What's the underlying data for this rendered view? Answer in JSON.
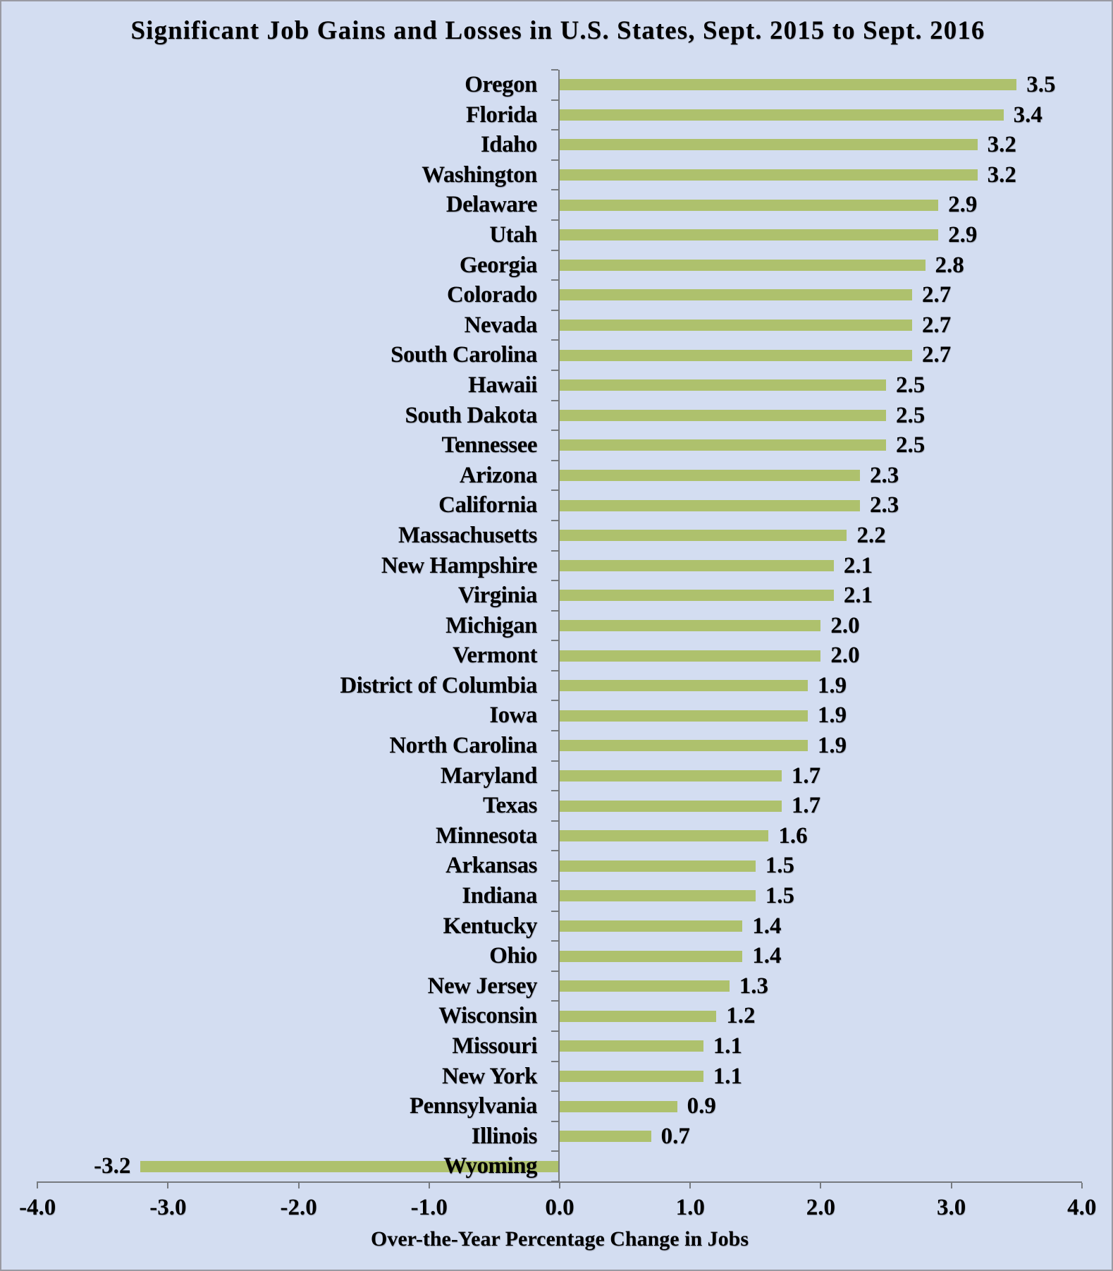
{
  "chart_data": {
    "type": "bar",
    "orientation": "horizontal",
    "title": "Significant Job Gains and Losses in U.S. States, Sept. 2015 to Sept. 2016",
    "xlabel": "Over-the-Year Percentage Change in Jobs",
    "xlim": [
      -4.0,
      4.0
    ],
    "xtick_labels": [
      "-4.0",
      "-3.0",
      "-2.0",
      "-1.0",
      "0.0",
      "1.0",
      "2.0",
      "3.0",
      "4.0"
    ],
    "grid": false,
    "legend": false,
    "bar_color": "#aec16d",
    "background_color": "#d3ddf1",
    "axis_color": "#767a7f",
    "categories": [
      "Oregon",
      "Florida",
      "Idaho",
      "Washington",
      "Delaware",
      "Utah",
      "Georgia",
      "Colorado",
      "Nevada",
      "South Carolina",
      "Hawaii",
      "South Dakota",
      "Tennessee",
      "Arizona",
      "California",
      "Massachusetts",
      "New Hampshire",
      "Virginia",
      "Michigan",
      "Vermont",
      "District of Columbia",
      "Iowa",
      "North Carolina",
      "Maryland",
      "Texas",
      "Minnesota",
      "Arkansas",
      "Indiana",
      "Kentucky",
      "Ohio",
      "New Jersey",
      "Wisconsin",
      "Missouri",
      "New York",
      "Pennsylvania",
      "Illinois",
      "Wyoming"
    ],
    "values": [
      3.5,
      3.4,
      3.2,
      3.2,
      2.9,
      2.9,
      2.8,
      2.7,
      2.7,
      2.7,
      2.5,
      2.5,
      2.5,
      2.3,
      2.3,
      2.2,
      2.1,
      2.1,
      2.0,
      2.0,
      1.9,
      1.9,
      1.9,
      1.7,
      1.7,
      1.6,
      1.5,
      1.5,
      1.4,
      1.4,
      1.3,
      1.2,
      1.1,
      1.1,
      0.9,
      0.7,
      -3.2
    ],
    "value_labels": [
      "3.5",
      "3.4",
      "3.2",
      "3.2",
      "2.9",
      "2.9",
      "2.8",
      "2.7",
      "2.7",
      "2.7",
      "2.5",
      "2.5",
      "2.5",
      "2.3",
      "2.3",
      "2.2",
      "2.1",
      "2.1",
      "2.0",
      "2.0",
      "1.9",
      "1.9",
      "1.9",
      "1.7",
      "1.7",
      "1.6",
      "1.5",
      "1.5",
      "1.4",
      "1.4",
      "1.3",
      "1.2",
      "1.1",
      "1.1",
      "0.9",
      "0.7",
      "-3.2"
    ]
  }
}
